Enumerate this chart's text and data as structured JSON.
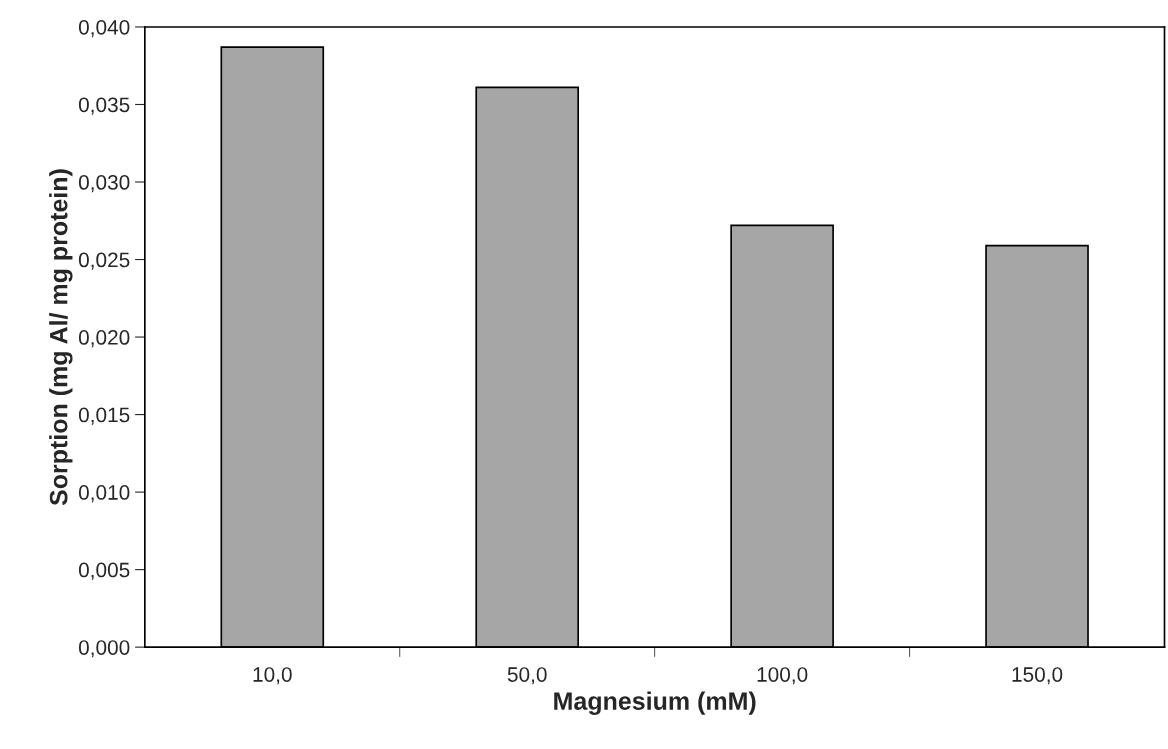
{
  "chart_data": {
    "type": "bar",
    "xlabel": "Magnesium (mM)",
    "ylabel": "Sorption (mg Al/ mg protein)",
    "categories": [
      "10,0",
      "50,0",
      "100,0",
      "150,0"
    ],
    "values": [
      0.0387,
      0.0361,
      0.0272,
      0.0259
    ],
    "color": "#a6a6a6",
    "ylim": [
      0,
      0.04
    ],
    "yticks": [
      {
        "value": 0,
        "label": "0,000"
      },
      {
        "value": 0.005,
        "label": "0,005"
      },
      {
        "value": 0.01,
        "label": "0,010"
      },
      {
        "value": 0.015,
        "label": "0,015"
      },
      {
        "value": 0.02,
        "label": "0,020"
      },
      {
        "value": 0.025,
        "label": "0,025"
      },
      {
        "value": 0.03,
        "label": "0,030"
      },
      {
        "value": 0.035,
        "label": "0,035"
      },
      {
        "value": 0.04,
        "label": "0,040"
      }
    ],
    "grid": false
  }
}
